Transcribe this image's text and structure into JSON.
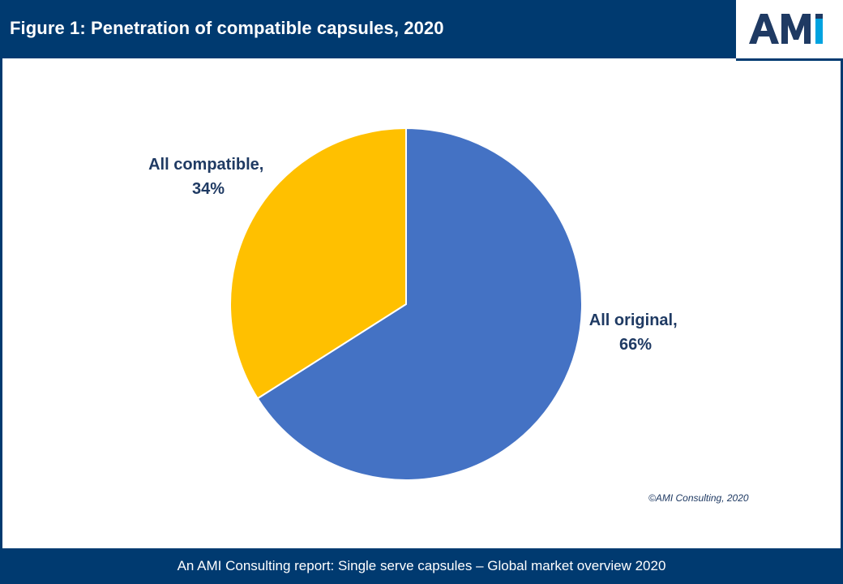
{
  "header": {
    "title": "Figure 1: Penetration of compatible capsules, 2020"
  },
  "logo": {
    "text": "AMI",
    "colors": {
      "primary": "#1f3a63",
      "accent": "#00a3e0"
    }
  },
  "colors": {
    "frame": "#003a70",
    "original": "#4472c4",
    "compatible": "#ffc000",
    "label": "#1f3a63"
  },
  "chart_data": {
    "type": "pie",
    "title": "Penetration of compatible capsules, 2020",
    "categories": [
      "All original",
      "All compatible"
    ],
    "values": [
      66,
      34
    ],
    "labels": [
      {
        "line1": "All original,",
        "line2": "66%"
      },
      {
        "line1": "All compatible,",
        "line2": "34%"
      }
    ],
    "start_angle_deg": 0,
    "direction": "clockwise"
  },
  "copyright": "©AMI Consulting, 2020",
  "footer": {
    "text": "An AMI Consulting report: Single serve capsules – Global market overview 2020"
  }
}
